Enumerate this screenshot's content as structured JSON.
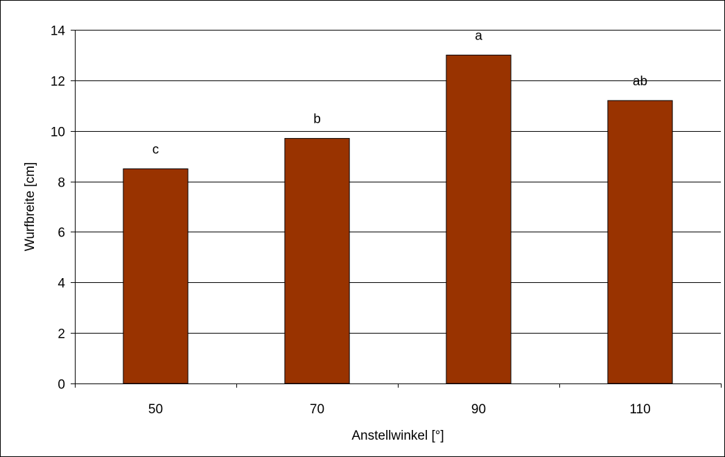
{
  "chart_data": {
    "type": "bar",
    "categories": [
      "50",
      "70",
      "90",
      "110"
    ],
    "values": [
      8.5,
      9.7,
      13.0,
      11.2
    ],
    "data_labels": [
      "c",
      "b",
      "a",
      "ab"
    ],
    "xlabel": "Anstellwinkel [°]",
    "ylabel": "Wurfbreite [cm]",
    "ylim": [
      0,
      14
    ],
    "yticks": [
      "0",
      "2",
      "4",
      "6",
      "8",
      "10",
      "12",
      "14"
    ],
    "grid": true,
    "legend": "none",
    "colors": {
      "bar_fill": "#993300",
      "bar_stroke": "#000000",
      "grid": "#000000"
    }
  }
}
